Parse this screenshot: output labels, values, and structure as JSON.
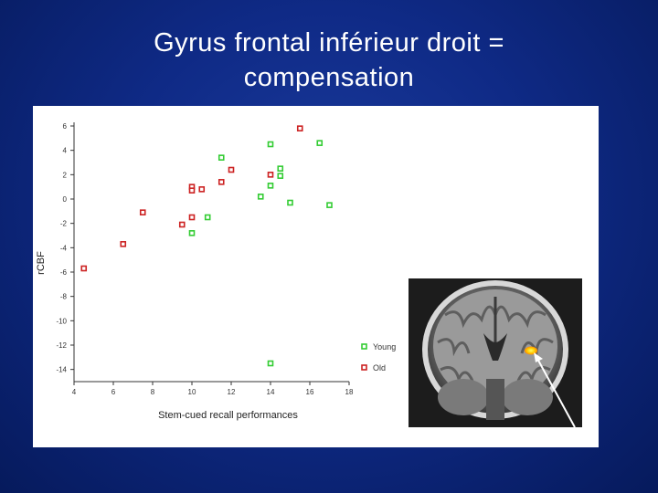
{
  "slide": {
    "title_line1": "Gyrus frontal inférieur droit =",
    "title_line2": "compensation"
  },
  "chart_data": {
    "type": "scatter",
    "xlabel": "Stem-cued recall performances",
    "ylabel": "rCBF",
    "xlim": [
      4,
      18
    ],
    "ylim": [
      -15,
      6
    ],
    "xticks": [
      4,
      6,
      8,
      10,
      12,
      14,
      16,
      18
    ],
    "yticks": [
      6,
      4,
      2,
      0,
      -2,
      -4,
      -6,
      -8,
      -10,
      -12,
      -14
    ],
    "legend_position": "bottom-right",
    "series": [
      {
        "name": "Young",
        "color": "#33cc33",
        "points": [
          [
            11.5,
            3.4
          ],
          [
            14.0,
            4.5
          ],
          [
            16.5,
            4.6
          ],
          [
            14.5,
            2.5
          ],
          [
            14.5,
            1.9
          ],
          [
            14.0,
            1.1
          ],
          [
            13.5,
            0.2
          ],
          [
            15.0,
            -0.3
          ],
          [
            17.0,
            -0.5
          ],
          [
            10.8,
            -1.5
          ],
          [
            10.0,
            -2.8
          ],
          [
            14.0,
            -13.5
          ]
        ]
      },
      {
        "name": "Old",
        "color": "#cc2222",
        "points": [
          [
            15.5,
            5.8
          ],
          [
            12.0,
            2.4
          ],
          [
            14.0,
            2.0
          ],
          [
            11.5,
            1.4
          ],
          [
            10.0,
            1.0
          ],
          [
            10.0,
            0.7
          ],
          [
            10.5,
            0.8
          ],
          [
            7.5,
            -1.1
          ],
          [
            9.5,
            -2.1
          ],
          [
            10.0,
            -1.5
          ],
          [
            6.5,
            -3.7
          ],
          [
            4.5,
            -5.7
          ]
        ]
      }
    ]
  },
  "brain_image": {
    "description_icon": "coronal-brain-mri-icon",
    "activation_color": "#ffcc00",
    "arrow_color": "#ffffff"
  }
}
